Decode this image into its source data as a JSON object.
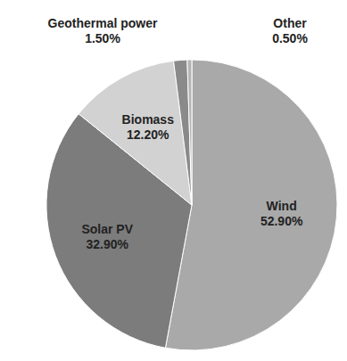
{
  "chart_data": {
    "type": "pie",
    "categories": [
      "Wind",
      "Solar PV",
      "Biomass",
      "Geothermal power",
      "Other"
    ],
    "values": [
      52.9,
      32.9,
      12.2,
      1.5,
      0.5
    ],
    "value_labels": [
      "52.90%",
      "32.90%",
      "12.20%",
      "1.50%",
      "0.50%"
    ],
    "colors": [
      "#a9a9a9",
      "#7c7c7c",
      "#d2d2d2",
      "#8a8a8a",
      "#b4b4b4"
    ],
    "data_labels": true
  }
}
